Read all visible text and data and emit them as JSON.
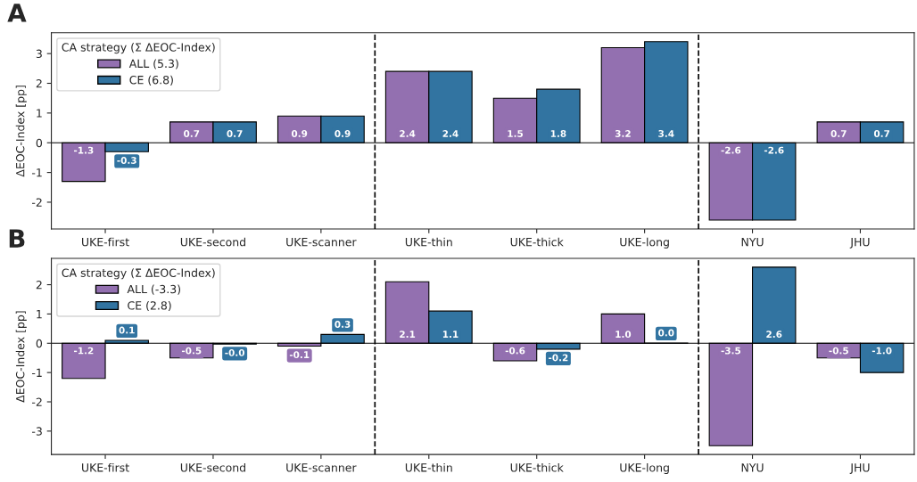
{
  "chart_data": [
    {
      "type": "bar",
      "title": "A",
      "ylabel": "ΔEOC-Index [pp]",
      "legend_title": "CA strategy (Σ ΔEOC-Index)",
      "legend": "top left",
      "categories": [
        "UKE-first",
        "UKE-second",
        "UKE-scanner",
        "UKE-thin",
        "UKE-thick",
        "UKE-long",
        "NYU",
        "JHU"
      ],
      "series": [
        {
          "name": "ALL (5.3)",
          "color": "#9370b0",
          "values": [
            -1.3,
            0.7,
            0.9,
            2.4,
            1.5,
            3.2,
            -2.6,
            0.7
          ],
          "value_labels": [
            "-1.3",
            "0.7",
            "0.9",
            "2.4",
            "1.5",
            "3.2",
            "-2.6",
            "0.7"
          ]
        },
        {
          "name": "CE (6.8)",
          "color": "#3274a1",
          "values": [
            -0.3,
            0.7,
            0.9,
            2.4,
            1.8,
            3.4,
            -2.6,
            0.7
          ],
          "value_labels": [
            "-0.3",
            "0.7",
            "0.9",
            "2.4",
            "1.8",
            "3.4",
            "-2.6",
            "0.7"
          ]
        }
      ],
      "ylim": [
        -2.9,
        3.7
      ],
      "yticks": [
        -2,
        -1,
        0,
        1,
        2,
        3
      ]
    },
    {
      "type": "bar",
      "title": "B",
      "ylabel": "ΔEOC-Index [pp]",
      "legend_title": "CA strategy (Σ ΔEOC-Index)",
      "legend": "top left",
      "categories": [
        "UKE-first",
        "UKE-second",
        "UKE-scanner",
        "UKE-thin",
        "UKE-thick",
        "UKE-long",
        "NYU",
        "JHU"
      ],
      "series": [
        {
          "name": "ALL (-3.3)",
          "color": "#9370b0",
          "values": [
            -1.2,
            -0.5,
            -0.1,
            2.1,
            -0.6,
            1.0,
            -3.5,
            -0.5
          ],
          "value_labels": [
            "-1.2",
            "-0.5",
            "-0.1",
            "2.1",
            "-0.6",
            "1.0",
            "-3.5",
            "-0.5"
          ]
        },
        {
          "name": "CE (2.8)",
          "color": "#3274a1",
          "values": [
            0.1,
            -0.03,
            0.3,
            1.1,
            -0.2,
            0.01,
            2.6,
            -1.0
          ],
          "value_labels": [
            "0.1",
            "-0.0",
            "0.3",
            "1.1",
            "-0.2",
            "0.0",
            "2.6",
            "-1.0"
          ]
        }
      ],
      "ylim": [
        -3.8,
        2.9
      ],
      "yticks": [
        -3,
        -2,
        -1,
        0,
        1,
        2
      ]
    }
  ]
}
